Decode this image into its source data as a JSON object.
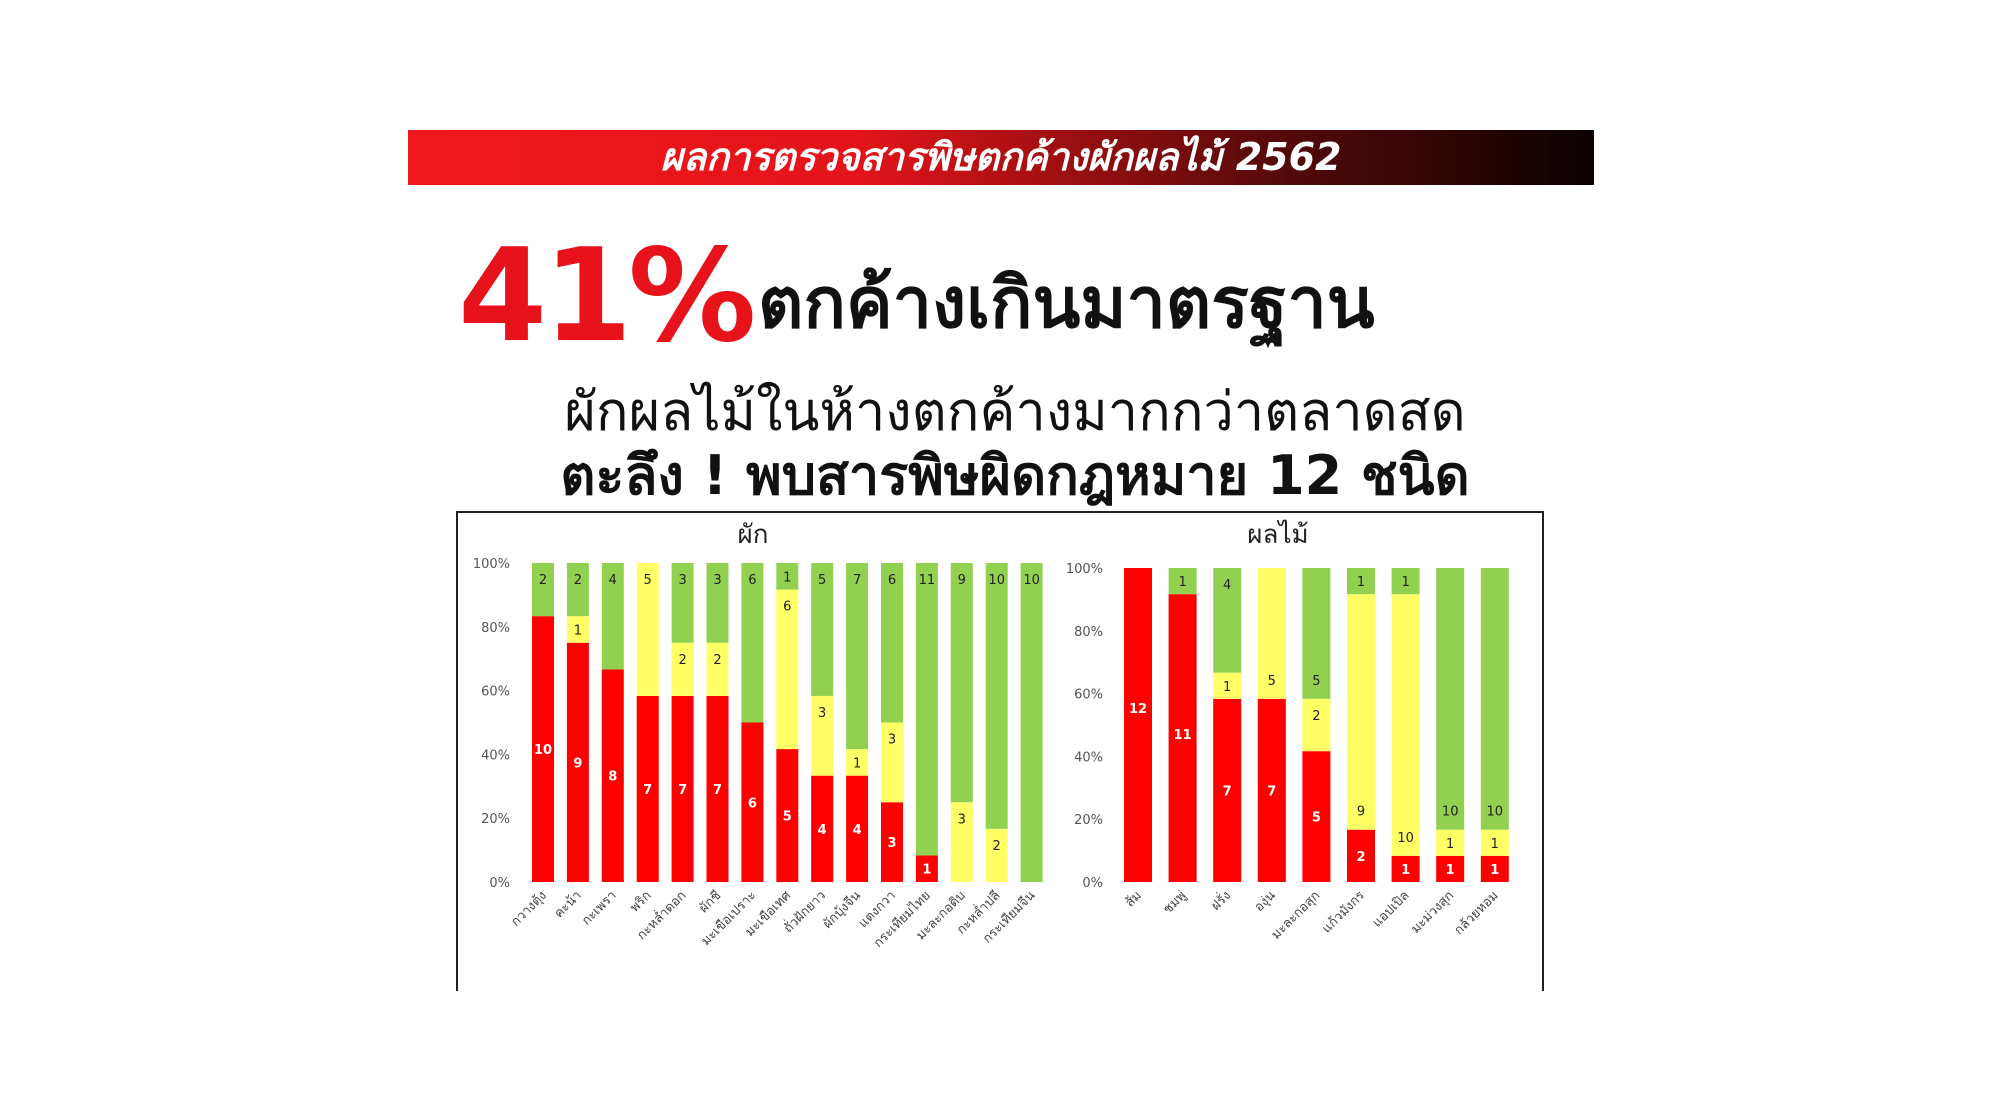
{
  "banner": {
    "title": "ผลการตรวจสารพิษตกค้างผักผลไม้ 2562"
  },
  "headline": {
    "percent": "41%",
    "text": "ตกค้างเกินมาตรฐาน",
    "subline1": "ผักผลไม้ในห้างตกค้างมากกว่าตลาดสด",
    "subline2": "ตะลึง ! พบสารพิษผิดกฎหมาย 12 ชนิด"
  },
  "colors": {
    "red": "#ff0000",
    "yellow": "#ffff66",
    "green": "#92d050"
  },
  "chart_data": [
    {
      "type": "bar",
      "stacked": "percent",
      "title": "ผัก",
      "ylim": [
        0,
        100
      ],
      "yticks": [
        "0%",
        "20%",
        "40%",
        "60%",
        "80%",
        "100%"
      ],
      "categories": [
        "กวางตุ้ง",
        "คะน้า",
        "กะเพรา",
        "พริก",
        "กะหล่ำดอก",
        "ผักชี",
        "มะเขือเปราะ",
        "มะเขือเทศ",
        "ถั่วฝักยาว",
        "ผักบุ้งจีน",
        "แตงกวา",
        "กระเทียมไทย",
        "มะละกอดิบ",
        "กะหล่ำปลี",
        "กระเทียมจีน"
      ],
      "series": [
        {
          "color": "red",
          "values": [
            10,
            9,
            8,
            7,
            7,
            7,
            6,
            5,
            4,
            4,
            3,
            1,
            0,
            0,
            0
          ]
        },
        {
          "color": "yellow",
          "values": [
            0,
            1,
            0,
            5,
            2,
            2,
            0,
            6,
            3,
            1,
            3,
            0,
            3,
            2,
            0
          ]
        },
        {
          "color": "green",
          "values": [
            2,
            2,
            4,
            0,
            3,
            3,
            6,
            1,
            5,
            7,
            6,
            11,
            9,
            10,
            10
          ]
        }
      ]
    },
    {
      "type": "bar",
      "stacked": "percent",
      "title": "ผลไม้",
      "ylim": [
        0,
        100
      ],
      "yticks": [
        "0%",
        "20%",
        "40%",
        "60%",
        "80%",
        "100%"
      ],
      "categories": [
        "ส้ม",
        "ชมพู่",
        "ฝรั่ง",
        "องุ่น",
        "มะละกอสุก",
        "แก้วมังกร",
        "แอปเปิล",
        "มะม่วงสุก",
        "กล้วยหอม"
      ],
      "series": [
        {
          "color": "red",
          "values": [
            12,
            11,
            7,
            7,
            5,
            2,
            1,
            1,
            1
          ]
        },
        {
          "color": "yellow",
          "values": [
            0,
            0,
            1,
            5,
            2,
            9,
            10,
            1,
            1
          ]
        },
        {
          "color": "green",
          "values": [
            0,
            1,
            4,
            0,
            5,
            1,
            1,
            10,
            10
          ]
        }
      ]
    }
  ]
}
